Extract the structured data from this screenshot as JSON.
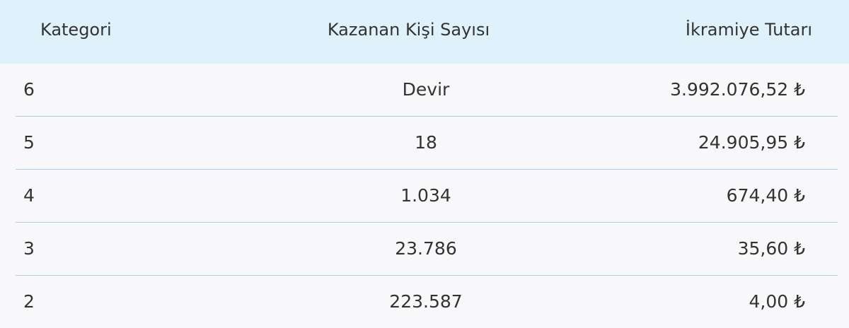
{
  "table": {
    "columns": [
      "Kategori",
      "Kazanan Kişi Sayısı",
      "İkramiye Tutarı"
    ],
    "rows": [
      {
        "kategori": "6",
        "kazanan": "Devir",
        "ikramiye": "3.992.076,52 ₺"
      },
      {
        "kategori": "5",
        "kazanan": "18",
        "ikramiye": "24.905,95 ₺"
      },
      {
        "kategori": "4",
        "kazanan": "1.034",
        "ikramiye": "674,40 ₺"
      },
      {
        "kategori": "3",
        "kazanan": "23.786",
        "ikramiye": "35,60 ₺"
      },
      {
        "kategori": "2",
        "kazanan": "223.587",
        "ikramiye": "4,00 ₺"
      }
    ]
  }
}
